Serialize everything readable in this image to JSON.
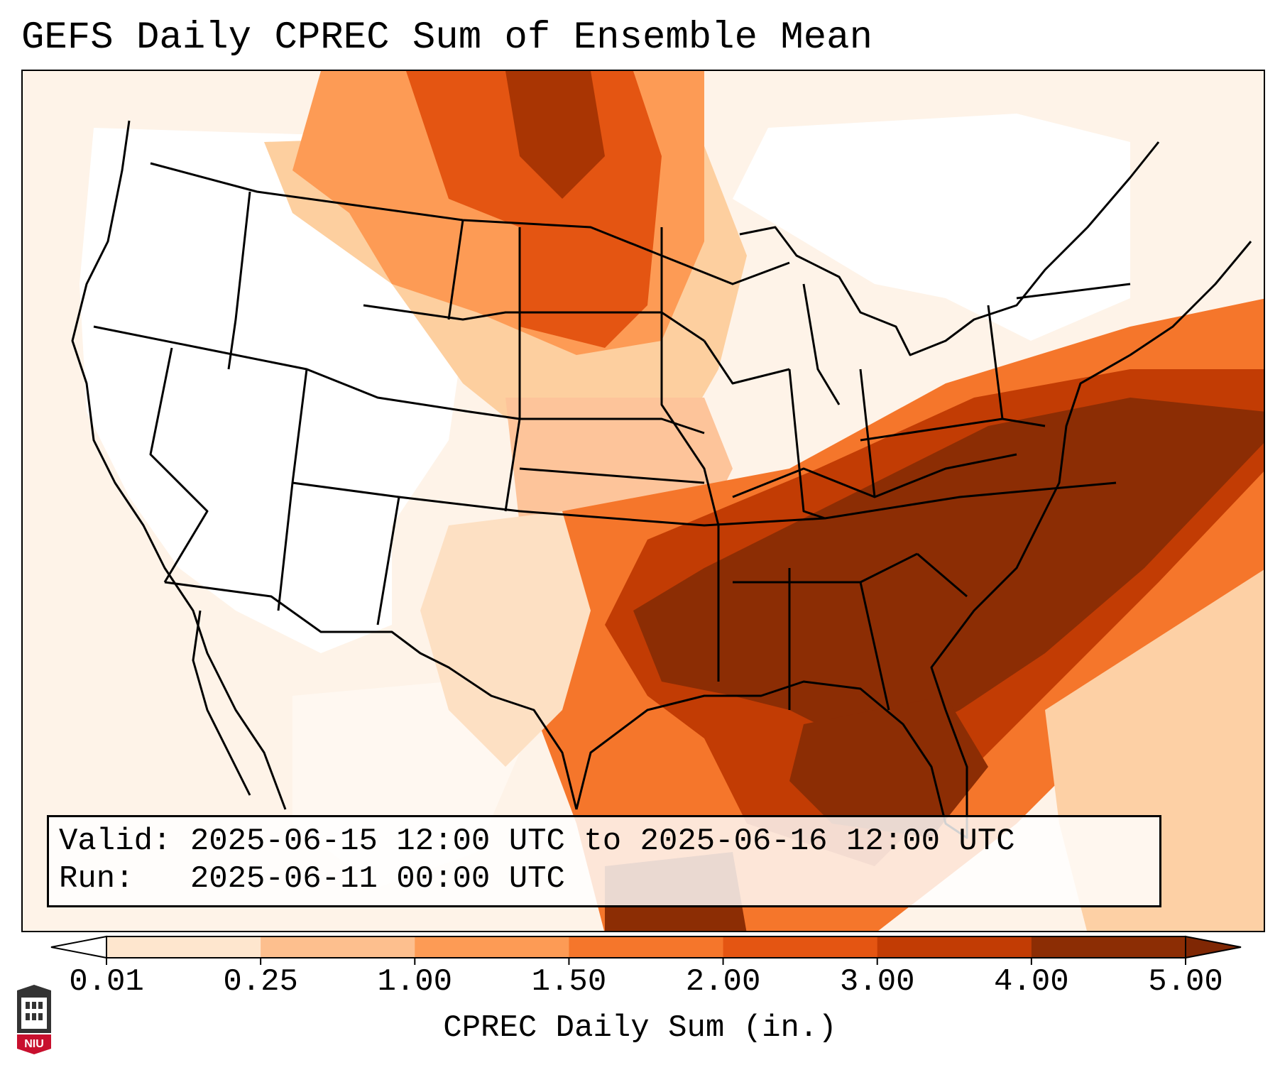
{
  "title": "GEFS Daily CPREC Sum of Ensemble Mean",
  "info": {
    "valid_label": "Valid:",
    "valid_value": "2025-06-15 12:00 UTC to 2025-06-16 12:00 UTC",
    "run_label": "Run:",
    "run_value": "2025-06-11 00:00 UTC"
  },
  "colorbar": {
    "label": "CPREC Daily Sum (in.)",
    "ticks": [
      "0.01",
      "0.25",
      "1.00",
      "1.50",
      "2.00",
      "3.00",
      "4.00",
      "5.00"
    ],
    "colors": [
      "#fff5eb",
      "#fee6ce",
      "#fdbf8e",
      "#fd9b55",
      "#f5762b",
      "#e45512",
      "#c23c04",
      "#8c2d04"
    ],
    "under_color": "#ffffff",
    "over_color": "#7f2704"
  },
  "logo": {
    "text": "NIU",
    "color": "#c8102e"
  }
}
